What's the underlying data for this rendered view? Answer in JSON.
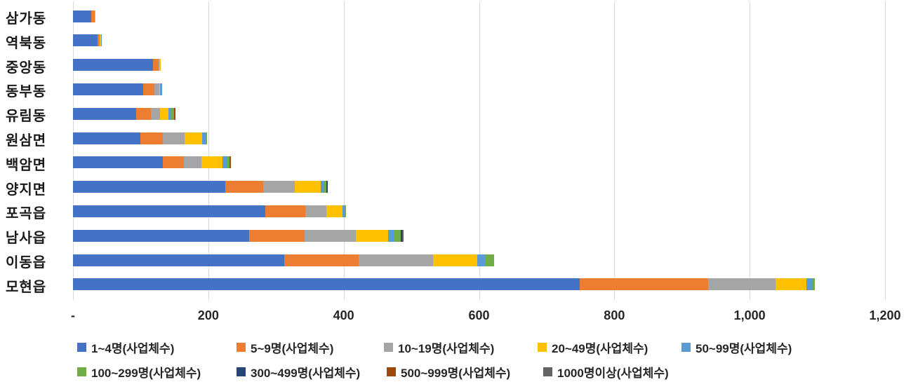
{
  "chart_data": {
    "type": "bar",
    "orientation": "horizontal",
    "stacked": true,
    "title": "",
    "xlabel": "",
    "ylabel": "",
    "grid": "vertical-only",
    "legend_position": "bottom",
    "categories": [
      "삼가동",
      "역북동",
      "중앙동",
      "동부동",
      "유림동",
      "원삼면",
      "백암면",
      "양지면",
      "포곡읍",
      "남사읍",
      "이동읍",
      "모현읍"
    ],
    "series": [
      {
        "name": "1~4명(사업체수)",
        "color": "#4472C4",
        "values": [
          27,
          36,
          118,
          104,
          93,
          100,
          133,
          225,
          284,
          260,
          312,
          749
        ]
      },
      {
        "name": "5~9명(사업체수)",
        "color": "#ED7D31",
        "values": [
          5,
          3,
          9,
          16,
          22,
          33,
          31,
          56,
          59,
          82,
          110,
          190
        ]
      },
      {
        "name": "10~19명(사업체수)",
        "color": "#A5A5A5",
        "values": [
          0,
          0,
          1,
          8,
          14,
          32,
          26,
          47,
          31,
          76,
          110,
          99
        ]
      },
      {
        "name": "20~49명(사업체수)",
        "color": "#FFC000",
        "values": [
          1,
          2,
          2,
          1,
          12,
          26,
          31,
          38,
          24,
          48,
          65,
          46
        ]
      },
      {
        "name": "50~99명(사업체수)",
        "color": "#5B9BD5",
        "values": [
          0,
          1,
          0,
          3,
          4,
          5,
          6,
          5,
          3,
          9,
          13,
          9
        ]
      },
      {
        "name": "100~299명(사업체수)",
        "color": "#70AD47",
        "values": [
          0,
          0,
          0,
          0,
          4,
          2,
          4,
          3,
          2,
          9,
          12,
          3
        ]
      },
      {
        "name": "300~499명(사업체수)",
        "color": "#264478",
        "values": [
          0,
          0,
          0,
          0,
          0,
          0,
          0,
          3,
          0,
          2,
          0,
          0
        ]
      },
      {
        "name": "500~999명(사업체수)",
        "color": "#9E480E",
        "values": [
          0,
          0,
          0,
          0,
          2,
          0,
          2,
          0,
          0,
          2,
          0,
          0
        ]
      },
      {
        "name": "1000명이상(사업체수)",
        "color": "#636363",
        "values": [
          0,
          0,
          0,
          0,
          0,
          0,
          0,
          0,
          0,
          1,
          0,
          0
        ]
      }
    ],
    "x_axis": {
      "min": 0,
      "max": 1200,
      "tick_values": [
        0,
        200,
        400,
        600,
        800,
        1000,
        1200
      ],
      "tick_labels": [
        "-",
        "200",
        "400",
        "600",
        "800",
        "1,000",
        "1,200"
      ]
    },
    "legend_rows": [
      [
        0,
        1,
        2,
        3,
        4
      ],
      [
        5,
        6,
        7,
        8
      ]
    ]
  }
}
